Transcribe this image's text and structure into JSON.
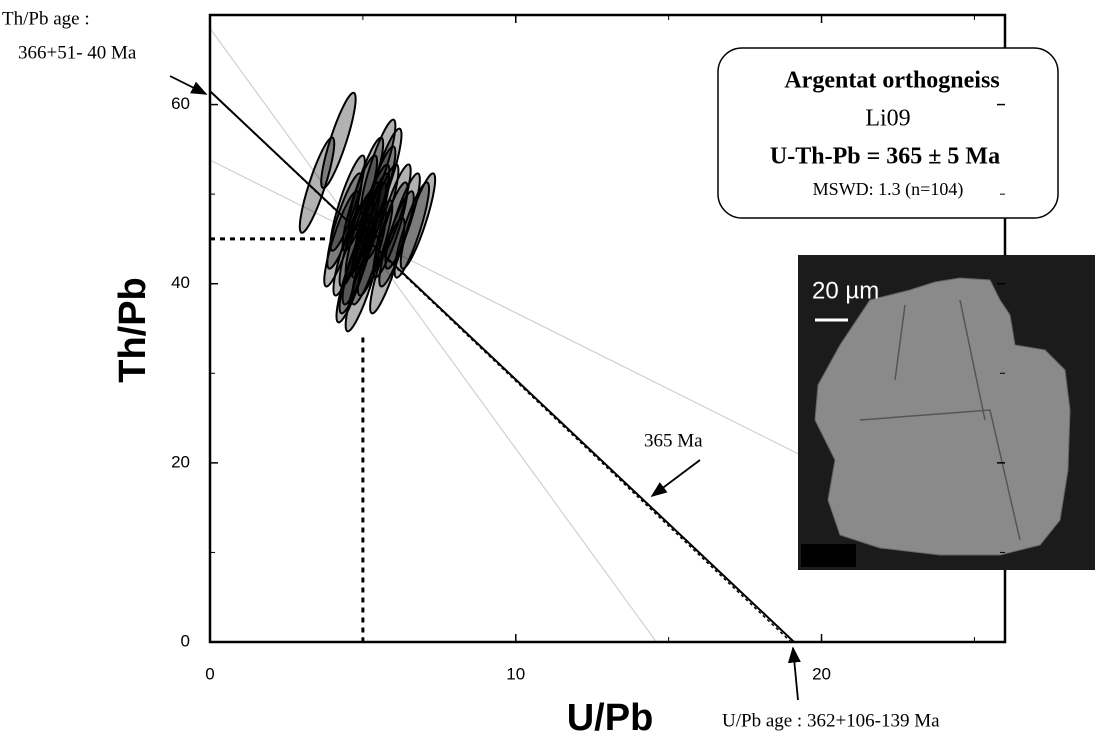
{
  "chart_data": {
    "type": "scatter",
    "x_label": "U/Pb",
    "y_label": "Th/Pb",
    "xlim": [
      0,
      26
    ],
    "ylim": [
      0,
      70
    ],
    "xticks": [
      0,
      10,
      20
    ],
    "yticks": [
      0,
      20,
      40,
      60
    ],
    "xminorticks": [
      5,
      15,
      25
    ],
    "yminorticks": [
      10,
      30,
      50
    ],
    "ellipses": {
      "x": [
        5.0,
        5.3,
        4.8,
        5.6,
        4.6,
        5.9,
        5.2,
        4.9,
        5.5,
        6.1,
        4.4,
        5.8,
        5.1,
        4.7,
        6.3,
        5.4,
        4.5,
        6.6,
        5.0,
        5.7,
        4.3,
        6.0,
        5.2,
        4.9,
        4.2,
        3.5,
        6.8,
        5.5,
        4.8,
        5.3
      ],
      "y": [
        46,
        47,
        45,
        48,
        44,
        46,
        43,
        49,
        50,
        45,
        47,
        42,
        51,
        41,
        47,
        44,
        49,
        46,
        40,
        52,
        45,
        48,
        46,
        43,
        56,
        51,
        47,
        53,
        42,
        48
      ],
      "color": "#000000"
    },
    "isochron": {
      "x": [
        0,
        19.1
      ],
      "y": [
        61.5,
        0
      ],
      "color": "#000000"
    },
    "reference_line": {
      "x": [
        0,
        19.0
      ],
      "y": [
        61.5,
        0
      ],
      "color": "#000000"
    },
    "envelope": [
      {
        "x": [
          0,
          14.6
        ],
        "y": [
          68.5,
          0
        ],
        "color": "#c8c8c8"
      },
      {
        "x": [
          0,
          19.3
        ],
        "y": [
          53.8,
          20.9
        ],
        "color": "#c8c8c8"
      }
    ],
    "intercept_guides": [
      {
        "x": [
          0,
          3.9
        ],
        "y": [
          45,
          45
        ]
      },
      {
        "x": [
          5,
          5
        ],
        "y": [
          34,
          0
        ]
      }
    ],
    "annotations": {
      "thpb_age_label": "Th/Pb age :",
      "thpb_age": "366+51- 40 Ma",
      "line_age": "365 Ma",
      "upb_age": "U/Pb age : 362+106-139 Ma"
    },
    "legend_box": {
      "sample": "Argentat orthogneiss",
      "id": "Li09",
      "age": "U-Th-Pb = 365 ± 5 Ma",
      "mswd": "MSWD: 1.3 (n=104)"
    },
    "image_scale": "20 µm"
  }
}
